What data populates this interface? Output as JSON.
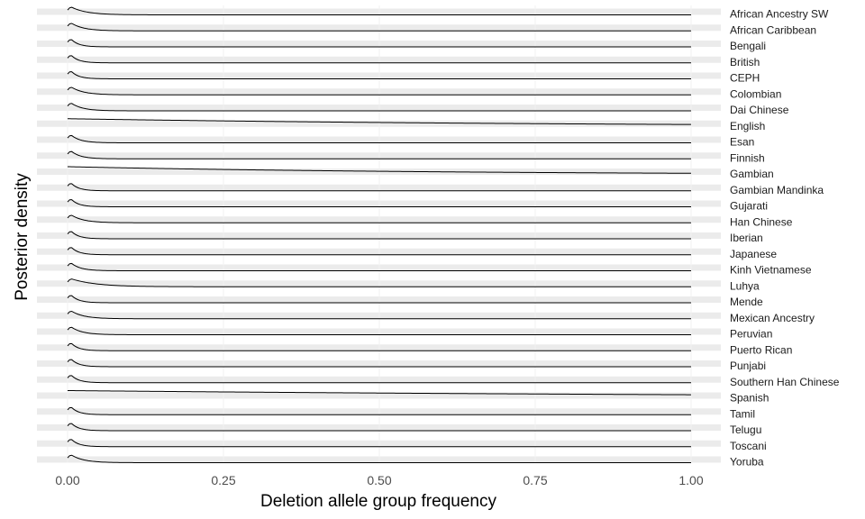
{
  "chart_data": {
    "type": "ridgeline",
    "xlabel": "Deletion allele group frequency",
    "ylabel": "Posterior density",
    "xlim": [
      0,
      1
    ],
    "x_ticks": [
      0,
      0.25,
      0.5,
      0.75,
      1
    ],
    "x_tick_labels": [
      "0.00",
      "0.25",
      "0.50",
      "0.75",
      "1.00"
    ],
    "grid": true,
    "legend": "none",
    "colors": {
      "band": "#ebebeb",
      "grid": "#f2f2f2",
      "line": "#000000"
    },
    "series": [
      {
        "name": "African Ancestry SW",
        "peak_x": 0.005,
        "scale": 0.025,
        "edge_height": 0.6
      },
      {
        "name": "African Caribbean",
        "peak_x": 0.005,
        "scale": 0.02,
        "edge_height": 0.6
      },
      {
        "name": "Bengali",
        "peak_x": 0.005,
        "scale": 0.012,
        "edge_height": 0.6
      },
      {
        "name": "British",
        "peak_x": 0.005,
        "scale": 0.012,
        "edge_height": 0.6
      },
      {
        "name": "CEPH",
        "peak_x": 0.005,
        "scale": 0.012,
        "edge_height": 0.6
      },
      {
        "name": "Colombian",
        "peak_x": 0.005,
        "scale": 0.02,
        "edge_height": 0.6
      },
      {
        "name": "Dai Chinese",
        "peak_x": 0.005,
        "scale": 0.018,
        "edge_height": 0.6
      },
      {
        "name": "English",
        "peak_x": 0.0,
        "scale": 0.8,
        "edge_height": 0.3
      },
      {
        "name": "Esan",
        "peak_x": 0.005,
        "scale": 0.015,
        "edge_height": 0.6
      },
      {
        "name": "Finnish",
        "peak_x": 0.005,
        "scale": 0.015,
        "edge_height": 0.6
      },
      {
        "name": "Gambian",
        "peak_x": 0.0,
        "scale": 0.6,
        "edge_height": 0.35
      },
      {
        "name": "Gambian Mandinka",
        "peak_x": 0.005,
        "scale": 0.012,
        "edge_height": 0.6
      },
      {
        "name": "Gujarati",
        "peak_x": 0.005,
        "scale": 0.012,
        "edge_height": 0.6
      },
      {
        "name": "Han Chinese",
        "peak_x": 0.005,
        "scale": 0.02,
        "edge_height": 0.6
      },
      {
        "name": "Iberian",
        "peak_x": 0.005,
        "scale": 0.012,
        "edge_height": 0.6
      },
      {
        "name": "Japanese",
        "peak_x": 0.005,
        "scale": 0.012,
        "edge_height": 0.6
      },
      {
        "name": "Kinh Vietnamese",
        "peak_x": 0.005,
        "scale": 0.015,
        "edge_height": 0.6
      },
      {
        "name": "Luhya",
        "peak_x": 0.005,
        "scale": 0.04,
        "edge_height": 0.6
      },
      {
        "name": "Mende",
        "peak_x": 0.005,
        "scale": 0.012,
        "edge_height": 0.6
      },
      {
        "name": "Mexican Ancestry",
        "peak_x": 0.005,
        "scale": 0.02,
        "edge_height": 0.6
      },
      {
        "name": "Peruvian",
        "peak_x": 0.005,
        "scale": 0.018,
        "edge_height": 0.6
      },
      {
        "name": "Puerto Rican",
        "peak_x": 0.005,
        "scale": 0.012,
        "edge_height": 0.6
      },
      {
        "name": "Punjabi",
        "peak_x": 0.005,
        "scale": 0.012,
        "edge_height": 0.6
      },
      {
        "name": "Southern Han Chinese",
        "peak_x": 0.005,
        "scale": 0.012,
        "edge_height": 0.6
      },
      {
        "name": "Spanish",
        "peak_x": 0.0,
        "scale": 1.4,
        "edge_height": 0.4
      },
      {
        "name": "Tamil",
        "peak_x": 0.005,
        "scale": 0.012,
        "edge_height": 0.6
      },
      {
        "name": "Telugu",
        "peak_x": 0.005,
        "scale": 0.012,
        "edge_height": 0.6
      },
      {
        "name": "Toscani",
        "peak_x": 0.005,
        "scale": 0.012,
        "edge_height": 0.6
      },
      {
        "name": "Yoruba",
        "peak_x": 0.005,
        "scale": 0.02,
        "edge_height": 0.6
      }
    ]
  }
}
